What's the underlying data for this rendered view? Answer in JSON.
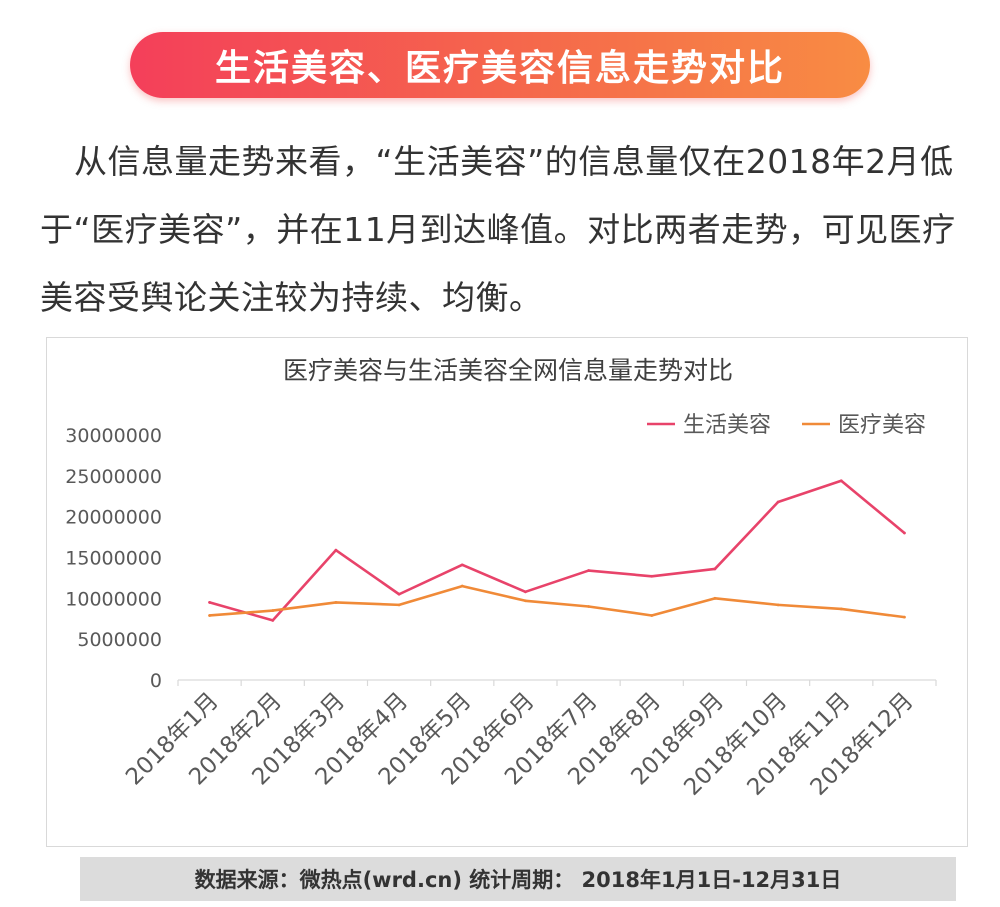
{
  "header": {
    "title": "生活美容、医疗美容信息走势对比"
  },
  "intro": {
    "text": "从信息量走势来看，“生活美容”的信息量仅在2018年2月低于“医疗美容”，并在11月到达峰值。对比两者走势，可见医疗美容受舆论关注较为持续、均衡。"
  },
  "footer": {
    "text": "数据来源：微热点(wrd.cn)  统计周期： 2018年1月1日-12月31日"
  },
  "colors": {
    "accent_start": "#f43f5a",
    "accent_end": "#f88c43",
    "series_life": "#e8436a",
    "series_medical": "#f08a38"
  },
  "chart_data": {
    "type": "line",
    "title": "医疗美容与生活美容全网信息量走势对比",
    "xlabel": "",
    "ylabel": "",
    "ylim": [
      0,
      30000000
    ],
    "yticks": [
      "0",
      "5000000",
      "10000000",
      "15000000",
      "20000000",
      "25000000",
      "30000000"
    ],
    "grid": false,
    "legend": "top-right",
    "categories": [
      "2018年1月",
      "2018年2月",
      "2018年3月",
      "2018年4月",
      "2018年5月",
      "2018年6月",
      "2018年7月",
      "2018年8月",
      "2018年9月",
      "2018年10月",
      "2018年11月",
      "2018年12月"
    ],
    "series": [
      {
        "name": "生活美容",
        "color": "#e8436a",
        "values": [
          9500000,
          7300000,
          15900000,
          10500000,
          14100000,
          10800000,
          13400000,
          12700000,
          13600000,
          21800000,
          24400000,
          18000000
        ]
      },
      {
        "name": "医疗美容",
        "color": "#f08a38",
        "values": [
          7900000,
          8500000,
          9500000,
          9200000,
          11500000,
          9700000,
          9000000,
          7900000,
          10000000,
          9200000,
          8700000,
          7700000
        ]
      }
    ]
  }
}
